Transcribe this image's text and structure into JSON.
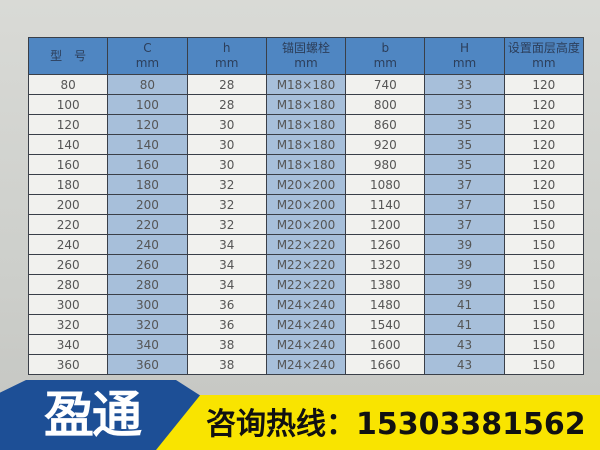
{
  "table": {
    "headers": [
      {
        "title": "型　号",
        "unit": ""
      },
      {
        "title": "C",
        "unit": "mm"
      },
      {
        "title": "h",
        "unit": "mm"
      },
      {
        "title": "锚固螺栓",
        "unit": "mm"
      },
      {
        "title": "b",
        "unit": "mm"
      },
      {
        "title": "H",
        "unit": "mm"
      },
      {
        "title": "设置面层高度",
        "unit": "mm"
      }
    ],
    "rows": [
      [
        "80",
        "80",
        "28",
        "M18×180",
        "740",
        "33",
        "120"
      ],
      [
        "100",
        "100",
        "28",
        "M18×180",
        "800",
        "33",
        "120"
      ],
      [
        "120",
        "120",
        "30",
        "M18×180",
        "860",
        "35",
        "120"
      ],
      [
        "140",
        "140",
        "30",
        "M18×180",
        "920",
        "35",
        "120"
      ],
      [
        "160",
        "160",
        "30",
        "M18×180",
        "980",
        "35",
        "120"
      ],
      [
        "180",
        "180",
        "32",
        "M20×200",
        "1080",
        "37",
        "120"
      ],
      [
        "200",
        "200",
        "32",
        "M20×200",
        "1140",
        "37",
        "150"
      ],
      [
        "220",
        "220",
        "32",
        "M20×200",
        "1200",
        "37",
        "150"
      ],
      [
        "240",
        "240",
        "34",
        "M22×220",
        "1260",
        "39",
        "150"
      ],
      [
        "260",
        "260",
        "34",
        "M22×220",
        "1320",
        "39",
        "150"
      ],
      [
        "280",
        "280",
        "34",
        "M22×220",
        "1380",
        "39",
        "150"
      ],
      [
        "300",
        "300",
        "36",
        "M24×240",
        "1480",
        "41",
        "150"
      ],
      [
        "320",
        "320",
        "36",
        "M24×240",
        "1540",
        "41",
        "150"
      ],
      [
        "340",
        "340",
        "38",
        "M24×240",
        "1600",
        "43",
        "150"
      ],
      [
        "360",
        "360",
        "38",
        "M24×240",
        "1660",
        "43",
        "150"
      ]
    ]
  },
  "banner": {
    "brand": "盈通",
    "hotline": "咨询热线：15303381562"
  },
  "colors": {
    "header": "#4f86c2",
    "shaded_column": "#a7bfda",
    "banner_yellow": "#f9e400",
    "banner_blue": "#1d4f96"
  }
}
